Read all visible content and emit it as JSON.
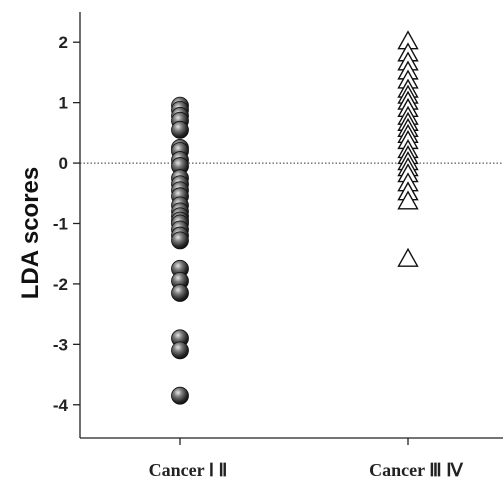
{
  "chart_data": {
    "type": "scatter",
    "ylabel": "LDA scores",
    "xlabel": "",
    "title": "",
    "categories": [
      "Cancer Ⅰ Ⅱ",
      "Cancer Ⅲ Ⅳ"
    ],
    "ylim": [
      -4.55,
      2.5
    ],
    "yticks": [
      2,
      1,
      0,
      -1,
      -2,
      -3,
      -4
    ],
    "reference_line": 0,
    "grid": false,
    "series": [
      {
        "category": "Cancer Ⅰ Ⅱ",
        "marker": "filled-circle",
        "values": [
          0.95,
          0.88,
          0.78,
          0.7,
          0.55,
          0.25,
          0.2,
          0.05,
          -0.05,
          -0.25,
          -0.35,
          -0.45,
          -0.55,
          -0.7,
          -0.8,
          -0.88,
          -0.95,
          -1.0,
          -1.1,
          -1.2,
          -1.28,
          -1.75,
          -1.95,
          -2.15,
          -2.9,
          -3.1,
          -3.85
        ]
      },
      {
        "category": "Cancer Ⅲ Ⅳ",
        "marker": "open-triangle",
        "values": [
          2.0,
          1.8,
          1.65,
          1.5,
          1.35,
          1.2,
          1.1,
          1.0,
          0.88,
          0.75,
          0.65,
          0.55,
          0.45,
          0.35,
          0.2,
          0.1,
          0.0,
          -0.1,
          -0.2,
          -0.35,
          -0.5,
          -0.65,
          -1.6
        ]
      }
    ]
  }
}
